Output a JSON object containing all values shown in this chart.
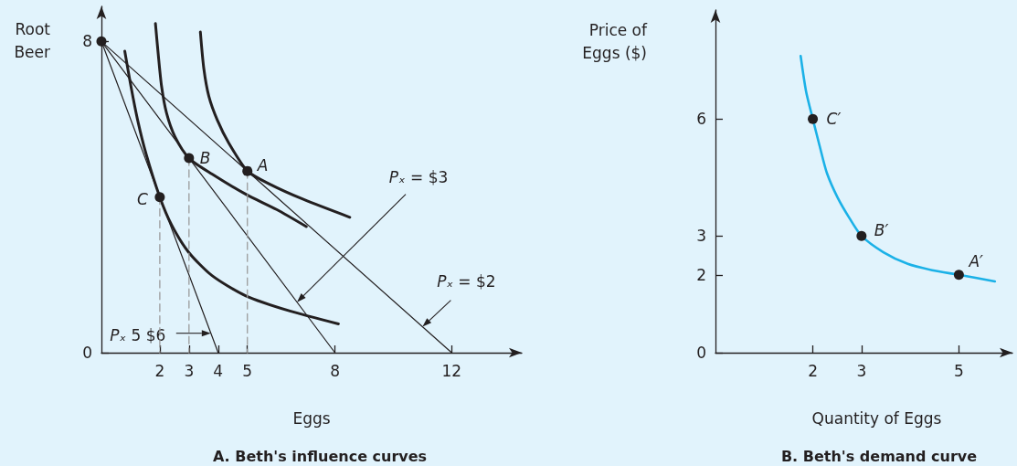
{
  "chart_data": [
    {
      "type": "line",
      "title": "A. Beth's influence curves",
      "xlabel": "Eggs",
      "ylabel": "Root Beer",
      "xlim": [
        0,
        14.4
      ],
      "ylim": [
        0,
        8.9
      ],
      "xticks": [
        2,
        3,
        4,
        5,
        8,
        12
      ],
      "yticks": [
        0,
        8
      ],
      "series": [
        {
          "color": "#231f20",
          "x": [
            0,
            4
          ],
          "values": [
            8,
            0
          ]
        },
        {
          "color": "#231f20",
          "x": [
            0,
            8
          ],
          "values": [
            8,
            0
          ]
        },
        {
          "color": "#231f20",
          "x": [
            0,
            12
          ],
          "values": [
            8,
            0
          ]
        },
        {
          "color": "#231f20",
          "x": [
            3.39,
            3.51,
            3.68,
            3.97,
            4.37,
            5,
            5.77,
            6.92,
            8.51
          ],
          "values": [
            8.24,
            7.29,
            6.59,
            5.98,
            5.38,
            4.67,
            4.33,
            3.94,
            3.48
          ]
        },
        {
          "color": "#231f20",
          "x": [
            1.85,
            1.94,
            2.06,
            2.23,
            2.52,
            3,
            3.79,
            4.95,
            6,
            7.02
          ],
          "values": [
            8.46,
            7.72,
            6.85,
            6.16,
            5.55,
            5,
            4.59,
            4.07,
            3.68,
            3.24
          ]
        },
        {
          "color": "#231f20",
          "x": [
            0.8,
            1.01,
            1.24,
            1.53,
            2,
            2.4,
            2.98,
            3.79,
            4.95,
            6.46,
            8.12
          ],
          "values": [
            7.75,
            6.85,
            5.98,
            5.11,
            4,
            3.29,
            2.59,
            1.98,
            1.46,
            1.07,
            0.74
          ]
        },
        {
          "color": "#9b9b9b",
          "line_style": "dashed",
          "x": [
            2,
            2
          ],
          "values": [
            4,
            0
          ]
        },
        {
          "color": "#9b9b9b",
          "line_style": "dashed",
          "x": [
            3,
            3
          ],
          "values": [
            5,
            0
          ]
        },
        {
          "color": "#9b9b9b",
          "line_style": "dashed",
          "x": [
            5,
            5
          ],
          "values": [
            4.67,
            0
          ]
        },
        {
          "type": "scatter",
          "marker": "circle",
          "color": "#231f20",
          "x": [
            0,
            2,
            3,
            5
          ],
          "values": [
            8,
            4,
            5,
            4.67
          ]
        }
      ],
      "annotations": [
        {
          "text": "A",
          "x": 5,
          "y": 4.67
        },
        {
          "text": "B",
          "x": 3,
          "y": 5
        },
        {
          "text": "C",
          "x": 2,
          "y": 4
        },
        "Pₓ = $3",
        "Pₓ = $2",
        "Pₓ 5 $6"
      ]
    },
    {
      "type": "line",
      "title": "B. Beth's demand curve",
      "xlabel": "Quantity of Eggs",
      "ylabel": "Price of Eggs ($)",
      "xlim": [
        0,
        6.1
      ],
      "ylim": [
        0,
        8.8
      ],
      "xticks": [
        2,
        3,
        5
      ],
      "yticks": [
        0,
        2,
        3,
        6
      ],
      "series": [
        {
          "color": "#1bb1e7",
          "x": [
            1.75,
            1.86,
            2,
            2.14,
            2.29,
            2.51,
            2.76,
            3,
            3.45,
            3.95,
            4.45,
            5,
            5.74
          ],
          "values": [
            7.62,
            6.72,
            6,
            5.31,
            4.61,
            3.98,
            3.44,
            3,
            2.58,
            2.28,
            2.12,
            2,
            1.83
          ]
        },
        {
          "type": "scatter",
          "marker": "circle",
          "color": "#231f20",
          "x": [
            2,
            3,
            5
          ],
          "values": [
            6,
            3,
            2
          ]
        }
      ],
      "annotations": [
        {
          "text": "C′",
          "x": 2,
          "y": 6
        },
        {
          "text": "B′",
          "x": 3,
          "y": 3
        },
        {
          "text": "A′",
          "x": 5,
          "y": 2
        }
      ]
    }
  ]
}
